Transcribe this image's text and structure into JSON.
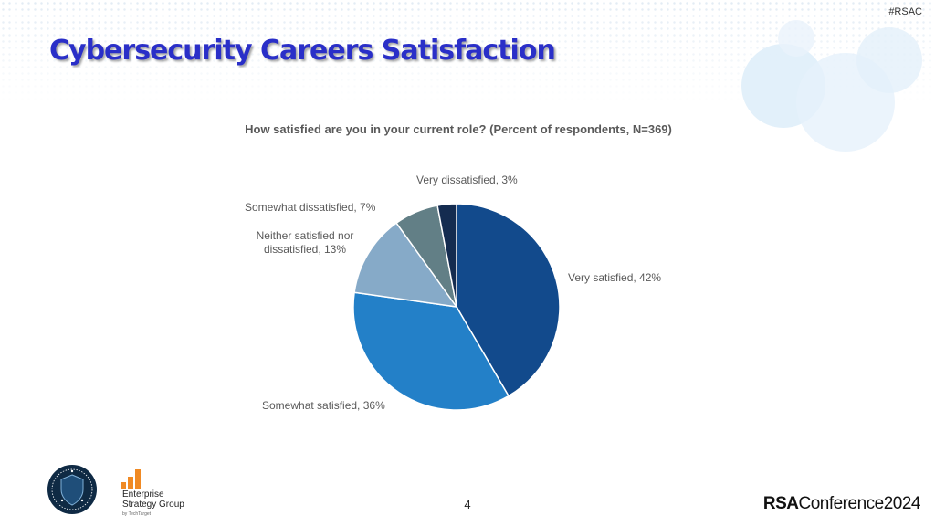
{
  "header": {
    "hashtag": "#RSAC",
    "title": "Cybersecurity Careers Satisfaction"
  },
  "chart_data": {
    "type": "pie",
    "title": "How satisfied are you in your current role? (Percent of respondents, N=369)",
    "categories": [
      "Very satisfied",
      "Somewhat satisfied",
      "Neither satisfied nor dissatisfied",
      "Somewhat dissatisfied",
      "Very dissatisfied"
    ],
    "values": [
      42,
      36,
      13,
      7,
      3
    ],
    "labels": [
      "Very satisfied, 42%",
      "Somewhat satisfied, 36%",
      "Neither satisfied nor dissatisfied, 13%",
      "Somewhat dissatisfied, 7%",
      "Very dissatisfied, 3%"
    ],
    "label_lines": {
      "neither_1": "Neither satisfied nor",
      "neither_2": "dissatisfied, 13%"
    },
    "colors": [
      "#124a8c",
      "#2380c8",
      "#86aac8",
      "#627f86",
      "#142c50"
    ]
  },
  "footer": {
    "page_number": "4",
    "badge_icon": "isc2-40-years-badge-icon",
    "esg_line1": "Enterprise",
    "esg_line2": "Strategy Group",
    "esg_by": "by TechTarget",
    "rsa_bold": "RSA",
    "rsa_rest": "Conference",
    "rsa_year": "2024"
  }
}
